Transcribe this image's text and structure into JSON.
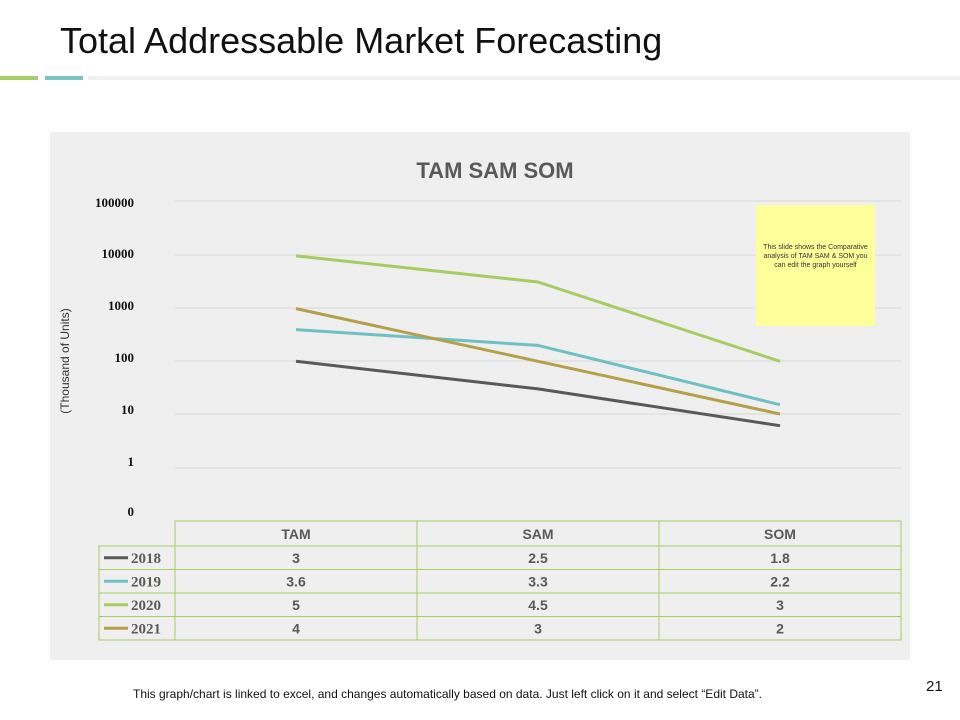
{
  "slide": {
    "title": "Total Addressable Market Forecasting",
    "footer_text": "This graph/chart is linked to excel, and changes automatically based on data. Just left click on it and select “Edit Data”.",
    "page_number": "21",
    "accent_colors": [
      "#a9cd6a",
      "#7cc4c4"
    ]
  },
  "note": {
    "text": "This slide shows the Comparative analysis of TAM SAM & SOM you can edit the graph yourself"
  },
  "chart_data": {
    "type": "line",
    "title": "TAM SAM SOM",
    "ylabel": "(Thousand of Units)",
    "xlabel": "",
    "y_scale": "log",
    "y_tick_labels": [
      "0",
      "1",
      "10",
      "100",
      "1000",
      "10000",
      "100000"
    ],
    "categories": [
      "TAM",
      "SAM",
      "SOM"
    ],
    "series": [
      {
        "name": "2018",
        "values": [
          100,
          30,
          6
        ],
        "table_labels": [
          "3",
          "2.5",
          "1.8"
        ],
        "color": "#595959"
      },
      {
        "name": "2019",
        "values": [
          400,
          200,
          15
        ],
        "table_labels": [
          "3.6",
          "3.3",
          "2.2"
        ],
        "color": "#6ec0c2"
      },
      {
        "name": "2020",
        "values": [
          10000,
          3200,
          100
        ],
        "table_labels": [
          "5",
          "4.5",
          "3"
        ],
        "color": "#a6cd63"
      },
      {
        "name": "2021",
        "values": [
          1000,
          100,
          10
        ],
        "table_labels": [
          "4",
          "3",
          "2"
        ],
        "color": "#b5a04a"
      }
    ],
    "grid": true,
    "legend": "data-table"
  }
}
